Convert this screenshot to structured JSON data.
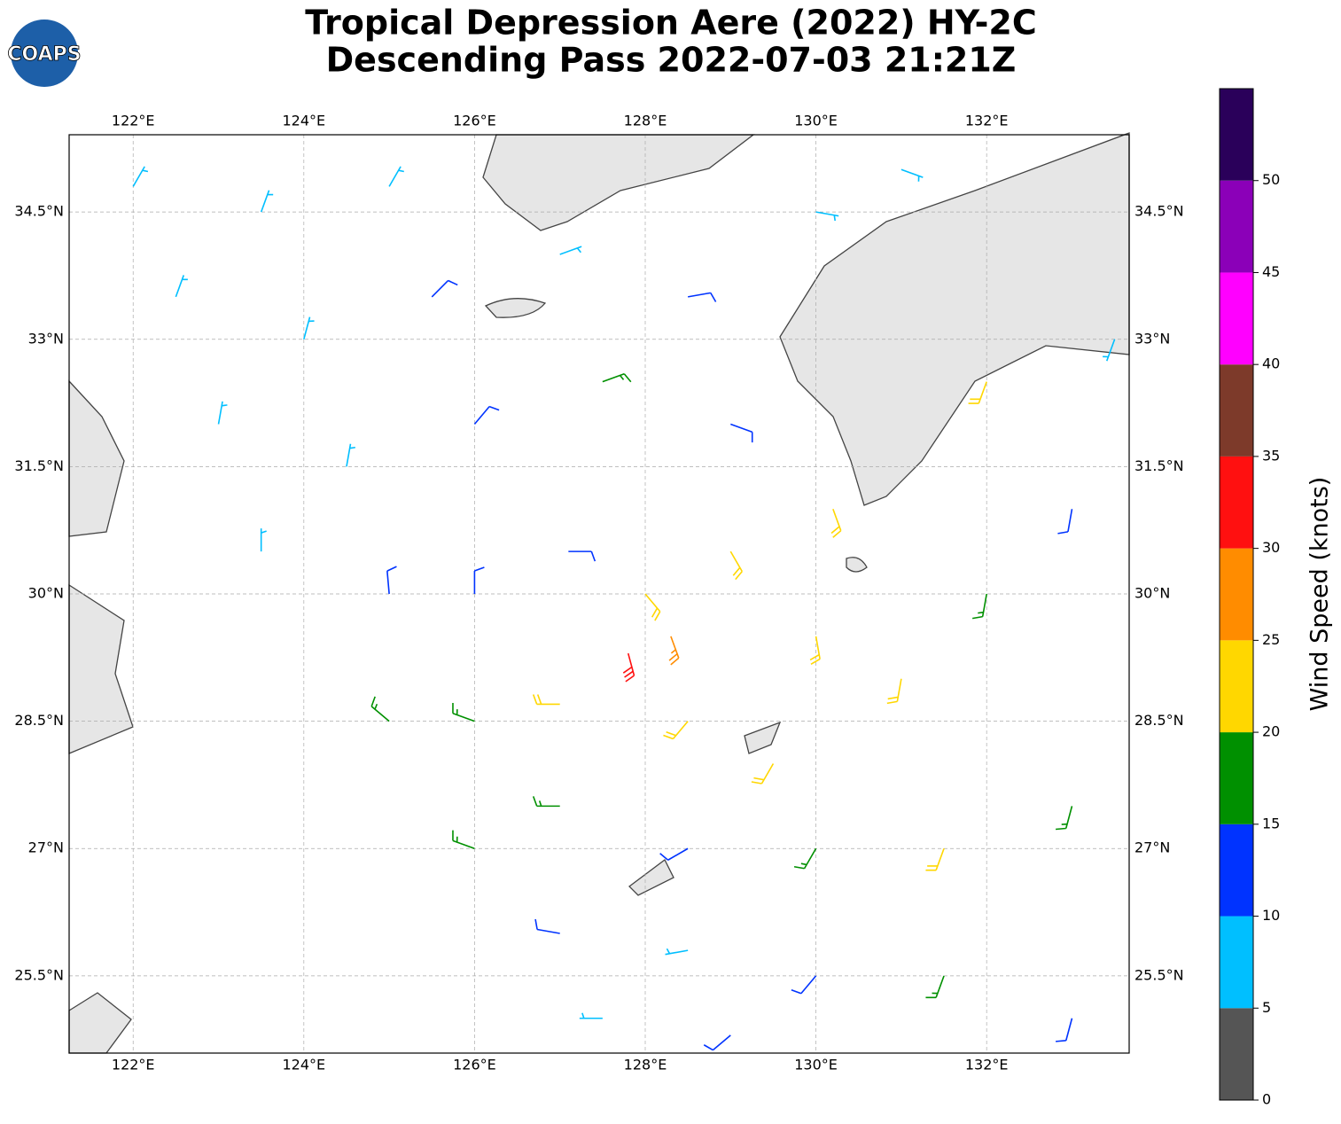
{
  "chart_data": {
    "type": "wind-barbs",
    "logo": "COAPS",
    "title": "Tropical Depression Aere (2022) HY-2C",
    "subtitle": "Descending Pass 2022-07-03 21:21Z",
    "xlim": [
      121.25,
      133.67
    ],
    "ylim": [
      24.59,
      35.41
    ],
    "xticks": [
      {
        "value": 122,
        "label": "122°E"
      },
      {
        "value": 124,
        "label": "124°E"
      },
      {
        "value": 126,
        "label": "126°E"
      },
      {
        "value": 128,
        "label": "128°E"
      },
      {
        "value": 130,
        "label": "130°E"
      },
      {
        "value": 132,
        "label": "132°E"
      }
    ],
    "yticks": [
      {
        "value": 25.5,
        "label": "25.5°N"
      },
      {
        "value": 27,
        "label": "27°N"
      },
      {
        "value": 28.5,
        "label": "28.5°N"
      },
      {
        "value": 30,
        "label": "30°N"
      },
      {
        "value": 31.5,
        "label": "31.5°N"
      },
      {
        "value": 33,
        "label": "33°N"
      },
      {
        "value": 34.5,
        "label": "34.5°N"
      }
    ],
    "grid": true,
    "barbs": {
      "lon": [
        122.0,
        123.5,
        125.0,
        122.5,
        124.0,
        125.5,
        127.0,
        128.5,
        130.0,
        131.0,
        123.0,
        124.5,
        126.0,
        127.5,
        129.0,
        123.5,
        125.0,
        126.0,
        127.1,
        128.0,
        129.0,
        130.0,
        127.8,
        128.3,
        125.0,
        126.0,
        127.0,
        128.5,
        129.5,
        131.0,
        132.0,
        133.0,
        126.0,
        127.0,
        128.5,
        130.0,
        131.5,
        133.0,
        127.0,
        128.5,
        130.0,
        131.5,
        133.0,
        127.5,
        129.0,
        132.0,
        133.5,
        130.2
      ],
      "lat": [
        34.8,
        34.5,
        34.8,
        33.5,
        33.0,
        33.5,
        34.0,
        33.5,
        34.5,
        35.0,
        32.0,
        31.5,
        32.0,
        32.5,
        32.0,
        30.5,
        30.0,
        30.0,
        30.5,
        30.0,
        30.5,
        29.5,
        29.3,
        29.5,
        28.5,
        28.5,
        28.7,
        28.5,
        28.0,
        29.0,
        30.0,
        31.0,
        27.0,
        27.5,
        27.0,
        27.0,
        27.0,
        27.5,
        26.0,
        25.8,
        25.5,
        25.5,
        25.0,
        25.0,
        24.8,
        32.5,
        33.0,
        31.0
      ],
      "speed": [
        8,
        7,
        6,
        8,
        7,
        12,
        8,
        10,
        9,
        8,
        8,
        9,
        13,
        17,
        14,
        8,
        12,
        13,
        12,
        22,
        22,
        22,
        30,
        27,
        17,
        18,
        22,
        24,
        24,
        22,
        17,
        13,
        17,
        18,
        13,
        19,
        22,
        17,
        12,
        8,
        14,
        17,
        12,
        8,
        12,
        22,
        8,
        22
      ],
      "direction": [
        30,
        20,
        30,
        20,
        15,
        45,
        70,
        80,
        100,
        110,
        10,
        10,
        40,
        70,
        110,
        0,
        355,
        0,
        90,
        140,
        150,
        170,
        165,
        160,
        310,
        290,
        270,
        220,
        210,
        190,
        190,
        190,
        290,
        270,
        240,
        210,
        200,
        195,
        280,
        260,
        220,
        200,
        195,
        270,
        230,
        200,
        200,
        160
      ]
    },
    "colorbar": {
      "label": "Wind Speed (knots)",
      "clim": [
        0,
        55
      ],
      "bounds": [
        0,
        5,
        10,
        15,
        20,
        25,
        30,
        35,
        40,
        45,
        50,
        55
      ],
      "colors": [
        "#555555",
        "#00bfff",
        "#0033ff",
        "#009000",
        "#ffd700",
        "#ff8c00",
        "#ff1010",
        "#7d3a2a",
        "#ff00ff",
        "#8b00b8",
        "#2a005a"
      ],
      "ticks": [
        0,
        5,
        10,
        15,
        20,
        25,
        30,
        35,
        40,
        45,
        50
      ]
    }
  }
}
